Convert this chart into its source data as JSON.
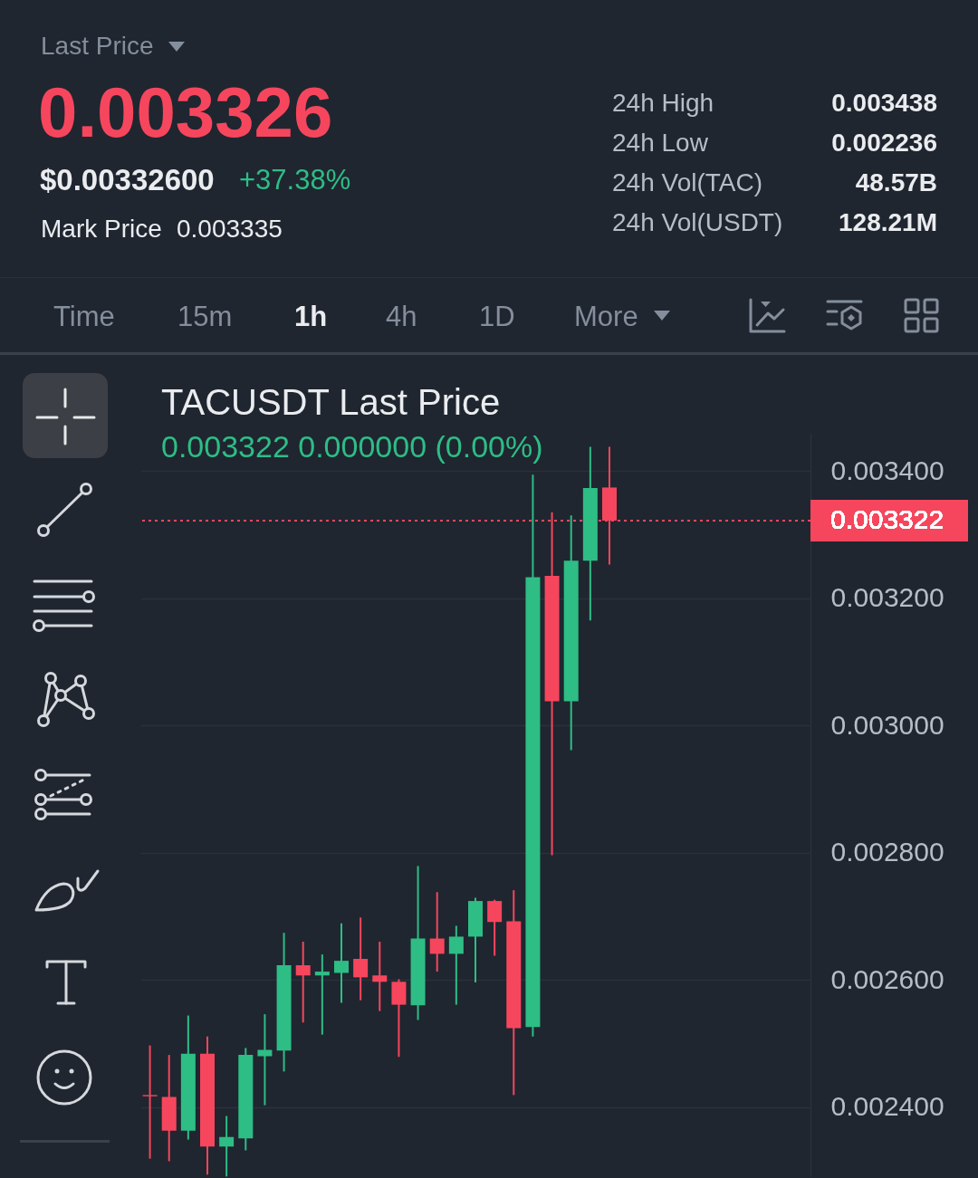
{
  "chart_data": {
    "type": "candlestick",
    "title": "TACUSDT Last Price",
    "subtitle": "0.003322 0.000000 (0.00%)",
    "annotations": [
      "Last Price",
      "0.003326",
      "$0.00332600",
      "+37.38%",
      "Mark Price",
      "0.003335",
      "24h High",
      "0.003438",
      "24h Low",
      "0.002236",
      "24h Vol(TAC)",
      "48.57B",
      "24h Vol(USDT)",
      "128.21M",
      "Time",
      "15m",
      "1h",
      "4h",
      "1D",
      "More"
    ],
    "categories": [
      null,
      null,
      null,
      null,
      null,
      null,
      null,
      null,
      null,
      null,
      null,
      null,
      null,
      null,
      null,
      null,
      null,
      null,
      null,
      null,
      null,
      null,
      null,
      null,
      null,
      null,
      null,
      null,
      null,
      null,
      null,
      null,
      null,
      null,
      null
    ],
    "ohlc": [
      [
        0.002419,
        0.002497,
        0.002319,
        0.002417
      ],
      [
        0.002416,
        0.002482,
        0.002315,
        0.002363
      ],
      [
        0.002363,
        0.002544,
        0.002349,
        0.002484
      ],
      [
        0.002484,
        0.002511,
        0.002294,
        0.002338
      ],
      [
        0.002338,
        0.002386,
        0.002291,
        0.002353
      ],
      [
        0.002351,
        0.002493,
        0.002332,
        0.002482
      ],
      [
        0.00248,
        0.002546,
        0.002403,
        0.00249
      ],
      [
        0.002489,
        0.002674,
        0.002456,
        0.002623
      ],
      [
        0.002623,
        0.00266,
        0.002533,
        0.002607
      ],
      [
        0.002607,
        0.00264,
        0.002514,
        0.002613
      ],
      [
        0.002611,
        0.002689,
        0.002564,
        0.00263
      ],
      [
        0.002633,
        0.002698,
        0.002568,
        0.002604
      ],
      [
        0.002607,
        0.00266,
        0.002551,
        0.002597
      ],
      [
        0.002597,
        0.002601,
        0.002479,
        0.002561
      ],
      [
        0.00256,
        0.002779,
        0.002537,
        0.002665
      ],
      [
        0.002665,
        0.002738,
        0.002613,
        0.002641
      ],
      [
        0.002641,
        0.002685,
        0.002561,
        0.002668
      ],
      [
        0.002668,
        0.002729,
        0.002596,
        0.002724
      ],
      [
        0.002724,
        0.002726,
        0.002638,
        0.002691
      ],
      [
        0.002692,
        0.002741,
        0.002419,
        0.002524
      ],
      [
        0.002526,
        0.003394,
        0.002511,
        0.003233
      ],
      [
        0.003235,
        0.003335,
        0.002796,
        0.003038
      ],
      [
        0.003038,
        0.00333,
        0.002961,
        0.003259
      ],
      [
        0.003259,
        0.003438,
        0.003165,
        0.003373
      ],
      [
        0.003374,
        0.003438,
        0.003253,
        0.003322
      ],
      null,
      null,
      null,
      null,
      null,
      null,
      null,
      null,
      null,
      null
    ],
    "colors": [
      "#f6465d",
      "#f6465d",
      "#2ebd85",
      "#f6465d",
      "#2ebd85",
      "#2ebd85",
      "#2ebd85",
      "#2ebd85",
      "#f6465d",
      "#2ebd85",
      "#2ebd85",
      "#f6465d",
      "#f6465d",
      "#f6465d",
      "#2ebd85",
      "#f6465d",
      "#2ebd85",
      "#2ebd85",
      "#f6465d",
      "#f6465d",
      "#2ebd85",
      "#f6465d",
      "#2ebd85",
      "#2ebd85",
      "#f6465d",
      null,
      null,
      null,
      null,
      null,
      null,
      null,
      null,
      null,
      null
    ],
    "ylim": [
      0.00229,
      0.00346
    ],
    "yticks": [
      {
        "value": 0.0024,
        "label": "0.002400"
      },
      {
        "value": 0.0026,
        "label": "0.002600"
      },
      {
        "value": 0.0028,
        "label": "0.002800"
      },
      {
        "value": 0.003,
        "label": "0.003000"
      },
      {
        "value": 0.0032,
        "label": "0.003200"
      },
      {
        "value": 0.0034,
        "label": "0.003400"
      }
    ],
    "grid": "y",
    "tick_labels": "y",
    "ref_lines": [
      {
        "axis": "y",
        "value": 0.003322,
        "label": "0.003322",
        "color": "#f6465d",
        "line_style": "dotted"
      }
    ]
  }
}
